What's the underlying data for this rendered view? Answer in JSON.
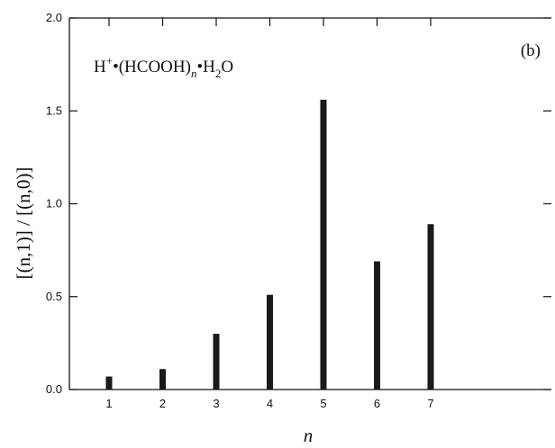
{
  "chart_data": {
    "type": "bar",
    "panel_label": "(b)",
    "annotation": {
      "base": "H",
      "sup": "+",
      "dot1": "•",
      "group": "(HCOOH)",
      "sub_n": "n",
      "dot2": "•",
      "h": "H",
      "sub_2": "2",
      "o": "O"
    },
    "xlabel": "n",
    "ylabel": "[(n,1)] / [(n,0)]",
    "categories": [
      "1",
      "2",
      "3",
      "4",
      "5",
      "6",
      "7"
    ],
    "values": [
      0.07,
      0.11,
      0.3,
      0.51,
      1.56,
      0.69,
      0.89
    ],
    "ylim": [
      0,
      2.0
    ],
    "yticks": [
      "0.0",
      "0.5",
      "1.0",
      "1.5",
      "2.0"
    ],
    "bar_color": "#1a1a1a",
    "grid": false
  }
}
